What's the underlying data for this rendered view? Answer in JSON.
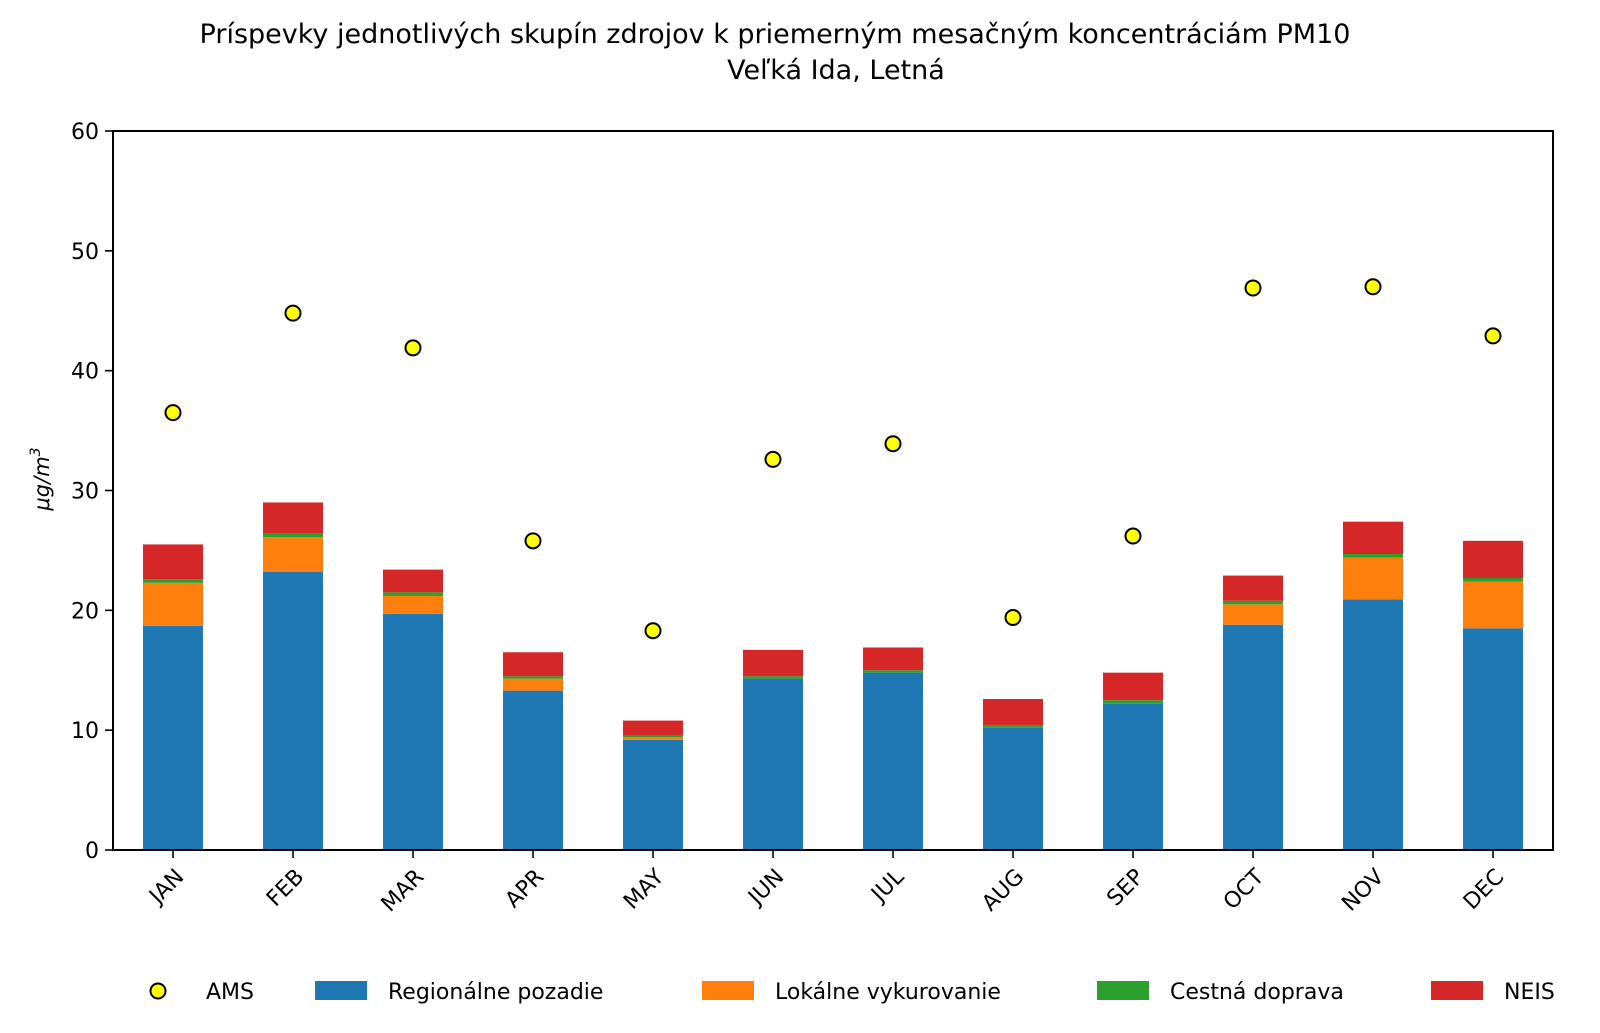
{
  "chart_data": {
    "type": "bar",
    "stacked": true,
    "title_line1": "Príspevky jednotlivých skupín zdrojov k priemerným mesačným koncentráciám PM10",
    "title_line2": "Veľká Ida, Letná",
    "xlabel": "",
    "ylabel_base": "μg/m",
    "ylabel_sup": "3",
    "ylim": [
      0,
      60
    ],
    "yticks": [
      0,
      10,
      20,
      30,
      40,
      50,
      60
    ],
    "categories": [
      "JAN",
      "FEB",
      "MAR",
      "APR",
      "MAY",
      "JUN",
      "JUL",
      "AUG",
      "SEP",
      "OCT",
      "NOV",
      "DEC"
    ],
    "series": [
      {
        "name": "Regionálne pozadie",
        "color": "#1f77b4",
        "values": [
          18.7,
          23.2,
          19.7,
          13.3,
          9.2,
          14.3,
          14.8,
          10.2,
          12.2,
          18.8,
          20.9,
          18.5
        ]
      },
      {
        "name": "Lokálne vykurovanie",
        "color": "#ff7f0e",
        "values": [
          3.6,
          2.9,
          1.5,
          1.0,
          0.2,
          0.0,
          0.0,
          0.0,
          0.0,
          1.7,
          3.5,
          3.9
        ]
      },
      {
        "name": "Cestná doprava",
        "color": "#2ca02c",
        "values": [
          0.3,
          0.3,
          0.3,
          0.2,
          0.2,
          0.2,
          0.2,
          0.2,
          0.3,
          0.3,
          0.3,
          0.3
        ]
      },
      {
        "name": "NEIS",
        "color": "#d62728",
        "values": [
          2.9,
          2.6,
          1.9,
          2.0,
          1.2,
          2.2,
          1.9,
          2.2,
          2.3,
          2.1,
          2.7,
          3.1
        ]
      }
    ],
    "points": {
      "name": "AMS",
      "color": "#ffff00",
      "edge": "#000000",
      "values": [
        36.5,
        44.8,
        41.9,
        25.8,
        18.3,
        32.6,
        33.9,
        19.4,
        26.2,
        46.9,
        47.0,
        42.9
      ]
    },
    "legend": {
      "placement": "bottom",
      "items": [
        {
          "label": "AMS",
          "kind": "marker",
          "color": "#ffff00"
        },
        {
          "label": "Regionálne pozadie",
          "kind": "patch",
          "color": "#1f77b4"
        },
        {
          "label": "Lokálne vykurovanie",
          "kind": "patch",
          "color": "#ff7f0e"
        },
        {
          "label": "Cestná doprava",
          "kind": "patch",
          "color": "#2ca02c"
        },
        {
          "label": "NEIS",
          "kind": "patch",
          "color": "#d62728"
        }
      ]
    }
  }
}
